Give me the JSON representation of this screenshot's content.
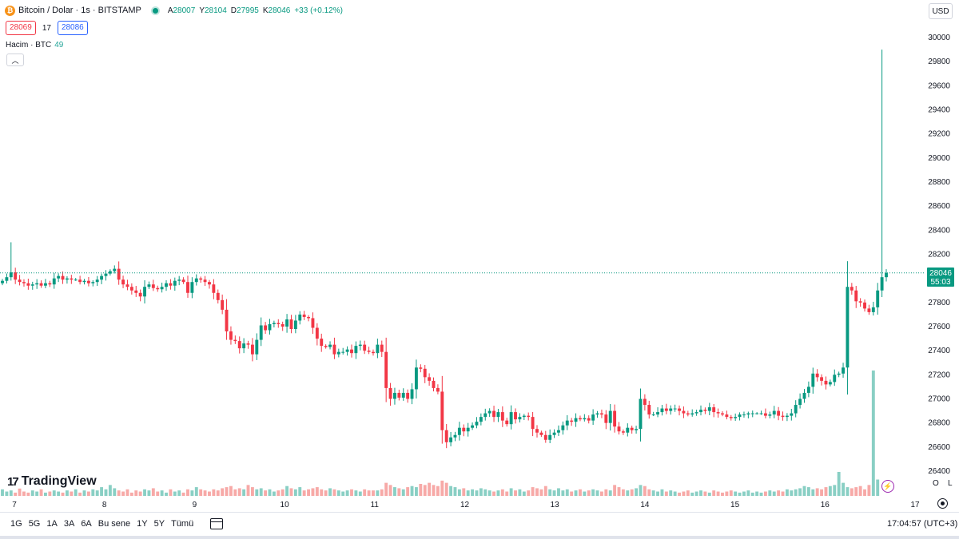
{
  "legend": {
    "symbol_icon": "bitcoin-icon",
    "title": "Bitcoin / Dolar · 1s · BITSTAMP",
    "open_label": "A",
    "open": "28007",
    "high_label": "Y",
    "high": "28104",
    "low_label": "D",
    "low": "27995",
    "close_label": "K",
    "close": "28046",
    "change": "+33 (+0.12%)"
  },
  "prices": {
    "sell": "28069",
    "spread": "17",
    "buy": "28086"
  },
  "volume_legend": {
    "label": "Hacim · BTC",
    "value": "49"
  },
  "currency_button": "USD",
  "logo_text": "TradingView",
  "timeframes": [
    "1G",
    "5G",
    "1A",
    "3A",
    "6A",
    "Bu sene",
    "1Y",
    "5Y",
    "Tümü"
  ],
  "clock": "17:04:57 (UTC+3)",
  "axis_buttons": {
    "log": "O",
    "linear": "L"
  },
  "price_label": {
    "price": "28046",
    "countdown": "55:03"
  },
  "colors": {
    "up": "#089981",
    "down": "#f23645",
    "vol_up": "#89cfc4",
    "vol_down": "#f7a9a7"
  },
  "chart_data": {
    "type": "candlestick",
    "title": "Bitcoin / Dolar · 1s · BITSTAMP",
    "x_ticks": [
      "7",
      "8",
      "9",
      "10",
      "11",
      "12",
      "13",
      "14",
      "15",
      "16",
      "17"
    ],
    "y_ticks": [
      26400,
      26600,
      26800,
      27000,
      27200,
      27400,
      27600,
      27800,
      28000,
      28200,
      28400,
      28600,
      28800,
      29000,
      29200,
      29400,
      29600,
      29800,
      30000
    ],
    "ylim": [
      26200,
      30100
    ],
    "last_price": 28046,
    "grid": false,
    "series": [
      {
        "name": "",
        "close": [
          27980,
          28010,
          28050,
          27990,
          27970,
          27960,
          27940,
          27950,
          27960,
          27940,
          27960,
          27950,
          28000,
          28020,
          27990,
          28000,
          27990,
          27990,
          27970,
          27980,
          27960,
          27970,
          27990,
          28020,
          28040,
          28060,
          28080,
          27990,
          27950,
          27930,
          27900,
          27880,
          27850,
          27930,
          27950,
          27920,
          27910,
          27930,
          27960,
          27940,
          27980,
          27990,
          27970,
          27880,
          27970,
          28000,
          27990,
          27970,
          27950,
          27880,
          27820,
          27740,
          27560,
          27490,
          27480,
          27420,
          27460,
          27450,
          27370,
          27490,
          27610,
          27570,
          27620,
          27630,
          27620,
          27600,
          27660,
          27580,
          27650,
          27700,
          27680,
          27670,
          27590,
          27500,
          27440,
          27430,
          27450,
          27370,
          27390,
          27390,
          27410,
          27380,
          27440,
          27450,
          27400,
          27390,
          27380,
          27450,
          27390,
          27090,
          27000,
          27050,
          27010,
          27050,
          27000,
          27080,
          27260,
          27250,
          27180,
          27150,
          27090,
          27060,
          26740,
          26640,
          26680,
          26700,
          26760,
          26730,
          26760,
          26780,
          26810,
          26850,
          26880,
          26900,
          26850,
          26890,
          26820,
          26790,
          26890,
          26830,
          26850,
          26860,
          26850,
          26750,
          26720,
          26700,
          26660,
          26700,
          26720,
          26740,
          26780,
          26820,
          26810,
          26840,
          26830,
          26840,
          26820,
          26870,
          26880,
          26870,
          26800,
          26900,
          26770,
          26730,
          26720,
          26760,
          26740,
          26750,
          27000,
          26950,
          26870,
          26870,
          26890,
          26920,
          26900,
          26920,
          26920,
          26900,
          26880,
          26870,
          26880,
          26890,
          26910,
          26900,
          26930,
          26890,
          26880,
          26870,
          26850,
          26840,
          26850,
          26870,
          26870,
          26880,
          26880,
          26880,
          26880,
          26860,
          26870,
          26900,
          26860,
          26850,
          26860,
          26880,
          26950,
          27000,
          27050,
          27100,
          27210,
          27180,
          27150,
          27120,
          27140,
          27200,
          27210,
          27260,
          27930,
          27900,
          27810,
          27800,
          27750,
          27720,
          27760,
          27900,
          28010,
          28046
        ]
      }
    ],
    "volume": [
      6,
      4,
      5,
      3,
      7,
      4,
      3,
      5,
      4,
      6,
      3,
      4,
      5,
      4,
      3,
      5,
      4,
      6,
      3,
      5,
      4,
      6,
      5,
      8,
      6,
      10,
      7,
      5,
      4,
      6,
      3,
      5,
      4,
      6,
      5,
      7,
      4,
      5,
      3,
      6,
      4,
      5,
      3,
      6,
      5,
      8,
      6,
      5,
      4,
      6,
      5,
      7,
      8,
      9,
      6,
      7,
      6,
      10,
      8,
      6,
      7,
      5,
      6,
      4,
      5,
      6,
      9,
      7,
      6,
      8,
      5,
      6,
      7,
      8,
      6,
      5,
      7,
      6,
      5,
      4,
      5,
      6,
      5,
      4,
      6,
      5,
      5,
      5,
      6,
      12,
      10,
      8,
      7,
      6,
      8,
      9,
      8,
      11,
      10,
      12,
      10,
      9,
      14,
      12,
      9,
      8,
      6,
      7,
      5,
      6,
      5,
      7,
      6,
      5,
      4,
      5,
      6,
      4,
      7,
      5,
      6,
      4,
      5,
      8,
      7,
      6,
      9,
      6,
      5,
      7,
      5,
      6,
      4,
      5,
      6,
      4,
      5,
      6,
      5,
      4,
      6,
      5,
      10,
      8,
      6,
      5,
      6,
      7,
      10,
      9,
      6,
      5,
      4,
      6,
      4,
      5,
      4,
      3,
      4,
      5,
      3,
      4,
      5,
      4,
      3,
      5,
      4,
      3,
      4,
      5,
      4,
      3,
      4,
      5,
      3,
      4,
      3,
      4,
      5,
      4,
      5,
      4,
      6,
      5,
      6,
      7,
      9,
      8,
      6,
      7,
      6,
      8,
      9,
      10,
      22,
      12,
      8,
      7,
      8,
      9,
      6,
      10,
      115,
      15
    ]
  }
}
